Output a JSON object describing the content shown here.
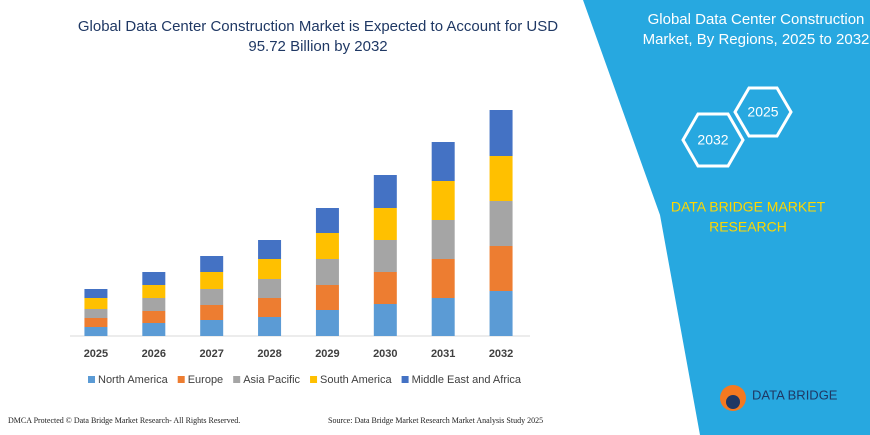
{
  "chart_data": {
    "type": "bar",
    "stacked": true,
    "title": "Global Data Center Construction Market is Expected to Account for USD",
    "subtitle": "95.72 Billion by 2032",
    "categories": [
      "2025",
      "2026",
      "2027",
      "2028",
      "2029",
      "2030",
      "2031",
      "2032"
    ],
    "series": [
      {
        "name": "North America",
        "color": "#5b9bd5",
        "values": [
          9,
          13,
          16,
          19,
          26,
          32,
          38,
          45
        ]
      },
      {
        "name": "Europe",
        "color": "#ed7d31",
        "values": [
          9,
          12,
          15,
          19,
          25,
          32,
          39,
          45
        ]
      },
      {
        "name": "Asia Pacific",
        "color": "#a5a5a5",
        "values": [
          9,
          13,
          16,
          19,
          26,
          32,
          39,
          45
        ]
      },
      {
        "name": "South America",
        "color": "#ffc000",
        "values": [
          11,
          13,
          17,
          20,
          26,
          32,
          39,
          45
        ]
      },
      {
        "name": "Middle East and Africa",
        "color": "#4472c4",
        "values": [
          9,
          13,
          16,
          19,
          25,
          33,
          39,
          46
        ]
      }
    ]
  },
  "panel": {
    "title_line1": "Global Data Center Construction",
    "title_line2": "Market, By Regions, 2025 to 2032",
    "hexagons": [
      "2032",
      "2025"
    ],
    "brand_line1": "DATA BRIDGE MARKET",
    "brand_line2": "RESEARCH"
  },
  "footer": {
    "dmca": "DMCA Protected © Data Bridge Market Research- All Rights Reserved.",
    "source": "Source: Data Bridge Market Research Market Analysis Study 2025"
  },
  "logo": {
    "name": "DATA BRIDGE"
  }
}
